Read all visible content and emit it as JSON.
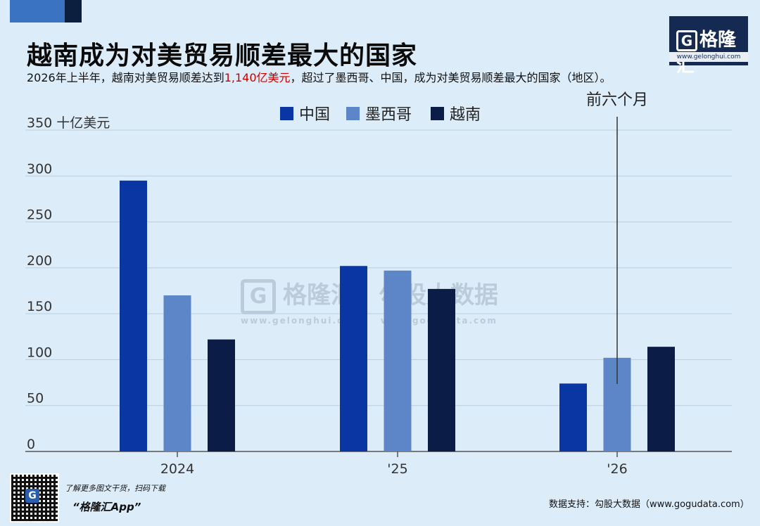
{
  "header": {
    "title": "越南成为对美贸易顺差最大的国家",
    "subtitle_before": "2026年上半年，越南对美贸易顺差达到",
    "subtitle_highlight": "1,140亿美元",
    "subtitle_after": "，超过了墨西哥、中国，成为对美贸易顺差最大的国家（地区）。"
  },
  "logo": {
    "glyph": "G",
    "name": "格隆汇",
    "url": "www.gelonghui.com"
  },
  "chart_data": {
    "type": "bar",
    "categories": [
      "2024",
      "'25",
      "'26"
    ],
    "series": [
      {
        "name": "中国",
        "color": "#0a36a3",
        "values": [
          295,
          202,
          74
        ]
      },
      {
        "name": "墨西哥",
        "color": "#5d86c8",
        "values": [
          170,
          197,
          102
        ]
      },
      {
        "name": "越南",
        "color": "#0b1c47",
        "values": [
          122,
          177,
          114
        ]
      }
    ],
    "ylabel": "十亿美元",
    "yticks": [
      0,
      50,
      100,
      150,
      200,
      250,
      300,
      350
    ],
    "ylim": [
      0,
      350
    ],
    "legend_position": "top-center",
    "annotation": {
      "text": "前六个月",
      "category": "'26"
    },
    "grid": true
  },
  "watermark": {
    "brand": "格隆汇",
    "brand_url": "www.gelonghui.com",
    "data_brand": "勾股大数据",
    "data_url": "www.gogudata.com"
  },
  "footer": {
    "promo_line1": "了解更多图文干货，扫码下载",
    "promo_line2": "“格隆汇App”",
    "source": "数据支持：勾股大数据（www.gogudata.com）"
  }
}
